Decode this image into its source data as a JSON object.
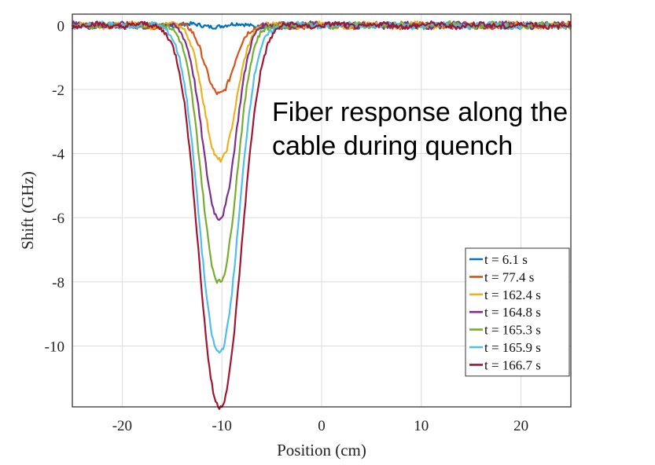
{
  "chart_data": {
    "type": "line",
    "xlabel": "Position (cm)",
    "ylabel": "Shift (GHz)",
    "xlim": [
      -25,
      25
    ],
    "ylim": [
      -11.9,
      0.35
    ],
    "xticks": [
      -20,
      -10,
      0,
      10,
      20
    ],
    "yticks": [
      0,
      -2,
      -4,
      -6,
      -8,
      -10
    ],
    "grid": true,
    "legend_position": "bottom-right",
    "annotation": [
      "Fiber response along the",
      "cable during quench"
    ],
    "series": [
      {
        "name": "t = 6.1 s",
        "color": "#0072BD",
        "width_cm": 0,
        "min": 0.0,
        "noise": 0.06,
        "points": []
      },
      {
        "name": "t = 77.4 s",
        "color": "#D95319",
        "width_cm": 1.9,
        "min": -2.15,
        "center": -10.2,
        "noise": 0.08
      },
      {
        "name": "t = 162.4 s",
        "color": "#EDB120",
        "width_cm": 2.1,
        "min": -4.25,
        "center": -10.2,
        "noise": 0.08
      },
      {
        "name": "t = 164.8 s",
        "color": "#7E2F8E",
        "width_cm": 2.2,
        "min": -6.05,
        "center": -10.3,
        "noise": 0.08
      },
      {
        "name": "t = 165.3 s",
        "color": "#77AC30",
        "width_cm": 2.4,
        "min": -8.0,
        "center": -10.3,
        "noise": 0.08
      },
      {
        "name": "t = 165.9 s",
        "color": "#4DBEEE",
        "width_cm": 2.7,
        "min": -10.15,
        "center": -10.3,
        "noise": 0.08
      },
      {
        "name": "t = 166.7 s",
        "color": "#A2142F",
        "width_cm": 2.9,
        "min": -11.85,
        "center": -10.2,
        "noise": 0.08
      }
    ]
  }
}
